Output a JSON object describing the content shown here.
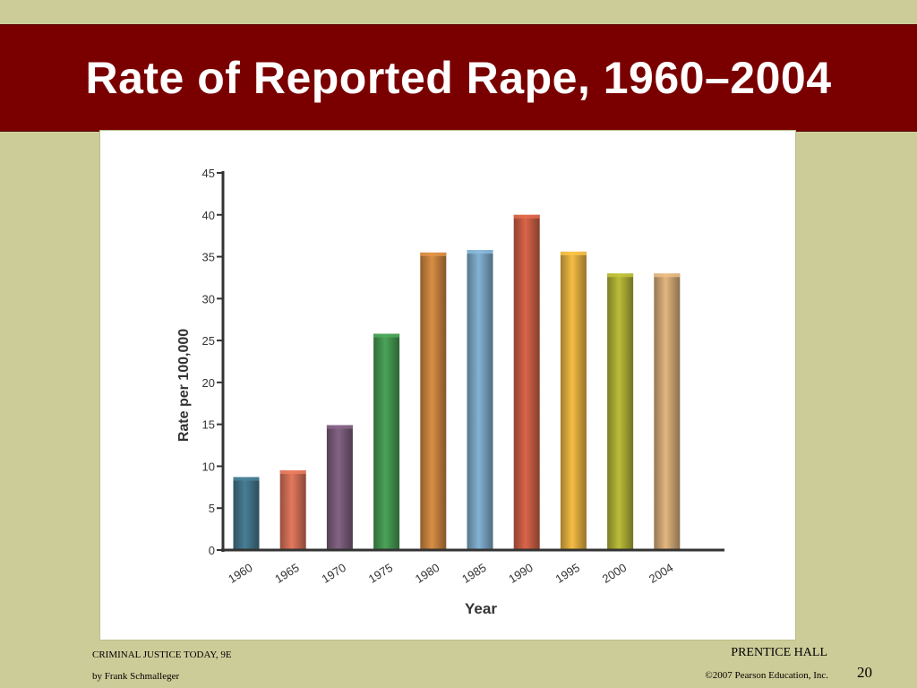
{
  "slide": {
    "title": "Rate of Reported Rape, 1960–2004",
    "footer_left_line1": "CRIMINAL JUSTICE TODAY, 9E",
    "footer_left_line2": "by Frank Schmalleger",
    "footer_right_line1": "PRENTICE HALL",
    "footer_right_line2": "©2007 Pearson Education, Inc.",
    "page_number": "20"
  },
  "chart_data": {
    "type": "bar",
    "title": "",
    "xlabel": "Year",
    "ylabel": "Rate per 100,000",
    "categories": [
      "1960",
      "1965",
      "1970",
      "1975",
      "1980",
      "1985",
      "1990",
      "1995",
      "2000",
      "2004"
    ],
    "values": [
      8.7,
      9.5,
      14.9,
      25.8,
      35.5,
      35.8,
      40.0,
      35.6,
      33.0,
      33.0
    ],
    "ylim": [
      0,
      45
    ],
    "yticks": [
      0,
      5,
      10,
      15,
      20,
      25,
      30,
      35,
      40,
      45
    ],
    "grid": false,
    "legend": "none",
    "bar_colors": [
      "#3d6b7e",
      "#c0664f",
      "#6f5470",
      "#3f8a4a",
      "#b8783a",
      "#6f98b4",
      "#b9563e",
      "#d0a03a",
      "#9fa030",
      "#c09a6c"
    ],
    "axis_color": "#333333"
  }
}
